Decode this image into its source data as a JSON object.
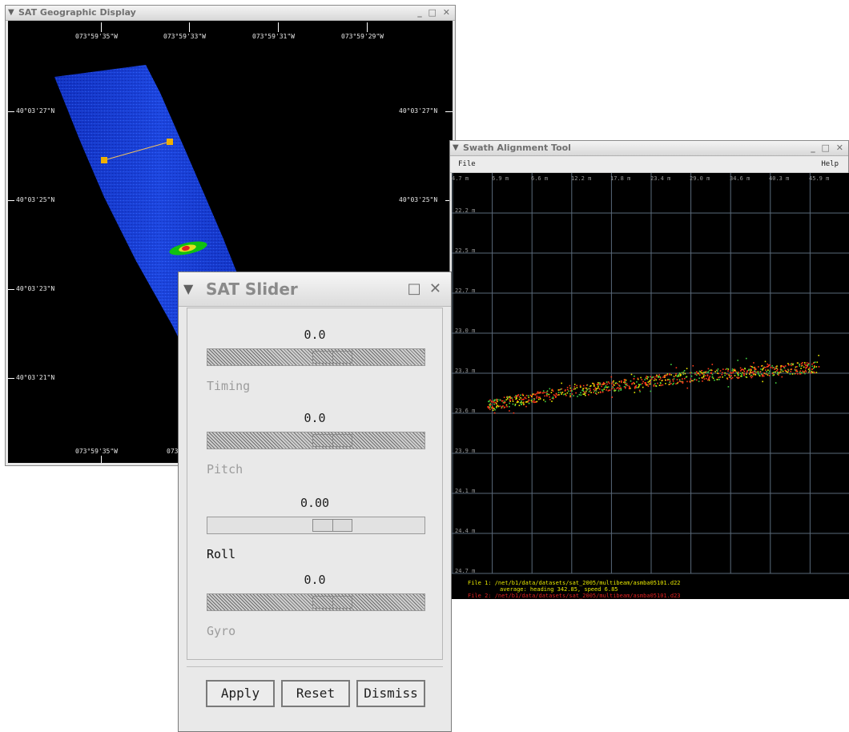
{
  "geo": {
    "title": "SAT Geographic Display",
    "controls": "_ □ ✕",
    "top_lon": [
      "073°59'35\"W",
      "073°59'33\"W",
      "073°59'31\"W",
      "073°59'29\"W"
    ],
    "bottom_lon": [
      "073°59'35\"W",
      "073°"
    ],
    "left_lat": [
      "40°03'27\"N",
      "40°03'25\"N",
      "40°03'23\"N",
      "40°03'21\"N"
    ],
    "right_lat": [
      "40°03'27\"N",
      "40°03'25\"N"
    ]
  },
  "swath": {
    "title": "Swath Alignment Tool",
    "controls": "_ □ ✕",
    "menu": {
      "file": "File",
      "help": "Help"
    },
    "x_labels": [
      "4.7 m",
      "6.9 m",
      "6.6 m",
      "12.2 m",
      "17.8 m",
      "23.4 m",
      "29.0 m",
      "34.6 m",
      "40.3 m",
      "45.9 m"
    ],
    "y_labels": [
      "22.2 m",
      "22.5 m",
      "22.7 m",
      "23.0 m",
      "23.3 m",
      "23.6 m",
      "23.9 m",
      "24.1 m",
      "24.4 m",
      "24.7 m"
    ],
    "status": {
      "line1": "File 1: /net/b1/data/datasets/sat_2005/multibeam/asmba05101.d22",
      "line2": "average: heading 342.85, speed 6.85",
      "line3": "File 2: /net/b1/data/datasets/sat_2005/multibeam/asmba05101.d23"
    },
    "colors": {
      "series1": "#ff3a1a",
      "series2": "#e8e800",
      "series3": "#40d040",
      "grid": "#5a6a7a"
    }
  },
  "slider": {
    "title": "SAT Slider",
    "controls": [
      "□",
      "✕"
    ],
    "timing": {
      "label": "Timing",
      "value": "0.0",
      "position": 0.5
    },
    "pitch": {
      "label": "Pitch",
      "value": "0.0",
      "position": 0.5
    },
    "roll": {
      "label": "Roll",
      "value": "0.00",
      "position": 0.5
    },
    "gyro": {
      "label": "Gyro",
      "value": "0.0",
      "position": 0.5
    },
    "buttons": {
      "apply": "Apply",
      "reset": "Reset",
      "dismiss": "Dismiss"
    }
  }
}
